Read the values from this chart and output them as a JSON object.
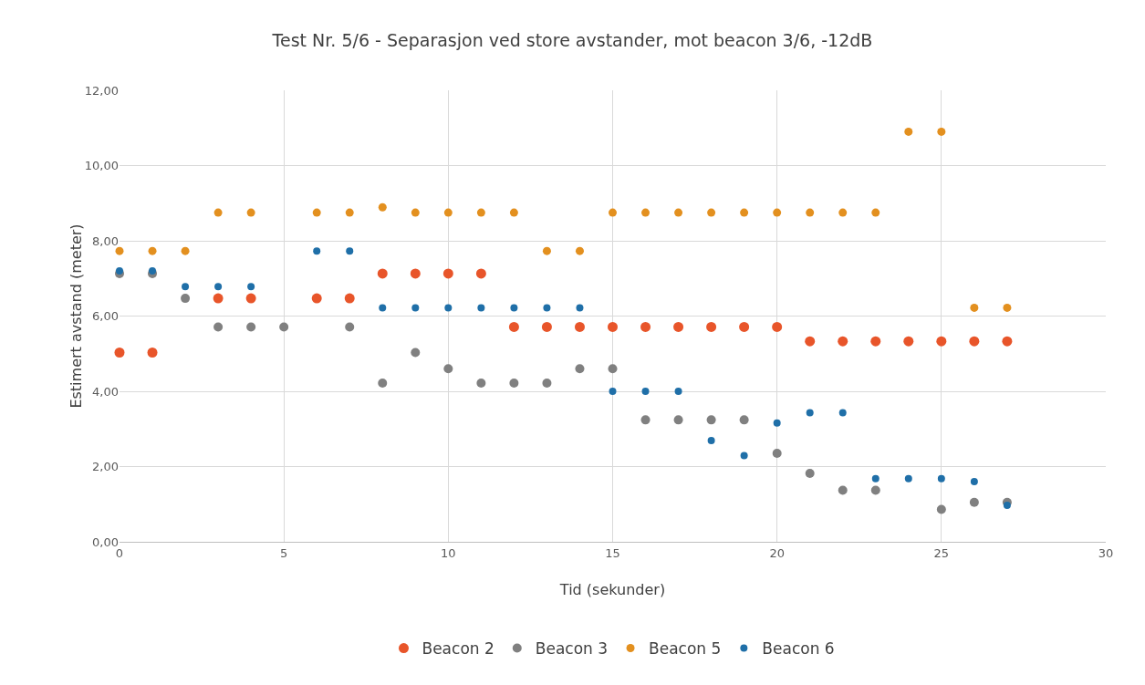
{
  "chart_data": {
    "type": "scatter",
    "title": "Test Nr. 5/6 - Separasjon ved store avstander, mot beacon 3/6, -12dB",
    "xlabel": "Tid (sekunder)",
    "ylabel": "Estimert avstand (meter)",
    "x": [
      0,
      1,
      2,
      3,
      4,
      5,
      6,
      7,
      8,
      9,
      10,
      11,
      12,
      13,
      14,
      15,
      16,
      17,
      18,
      19,
      20,
      21,
      22,
      23,
      24,
      25,
      26,
      27
    ],
    "series": [
      {
        "name": "Beacon 2",
        "color": "#e8552a",
        "values": [
          5.03,
          5.03,
          null,
          6.47,
          6.47,
          null,
          6.47,
          6.47,
          7.13,
          7.13,
          7.13,
          7.13,
          5.71,
          5.71,
          5.71,
          5.71,
          5.71,
          5.71,
          5.71,
          5.71,
          5.71,
          5.33,
          5.33,
          5.33,
          5.33,
          5.33,
          5.33,
          5.33
        ]
      },
      {
        "name": "Beacon 3",
        "color": "#808080",
        "values": [
          7.13,
          7.13,
          6.47,
          5.71,
          5.71,
          5.71,
          null,
          5.71,
          4.22,
          5.03,
          4.6,
          4.22,
          4.22,
          4.22,
          4.6,
          4.6,
          3.24,
          3.24,
          3.24,
          3.24,
          2.35,
          1.82,
          1.37,
          1.37,
          null,
          0.86,
          1.05,
          1.05
        ]
      },
      {
        "name": "Beacon 5",
        "color": "#e3901f",
        "values": [
          7.73,
          7.73,
          7.73,
          8.75,
          8.75,
          null,
          8.75,
          8.75,
          8.89,
          8.75,
          8.75,
          8.75,
          8.75,
          7.73,
          7.73,
          8.75,
          8.75,
          8.75,
          8.75,
          8.75,
          8.75,
          8.75,
          8.75,
          8.75,
          10.9,
          10.9,
          6.22,
          6.22
        ]
      },
      {
        "name": "Beacon 6",
        "color": "#1f6fa8",
        "values": [
          7.2,
          7.2,
          6.78,
          6.78,
          6.78,
          null,
          7.73,
          7.73,
          6.22,
          6.22,
          6.22,
          6.22,
          6.22,
          6.22,
          6.22,
          4.0,
          4.0,
          4.0,
          2.69,
          2.29,
          3.16,
          3.43,
          3.43,
          1.68,
          1.68,
          1.68,
          1.6,
          0.97
        ]
      }
    ],
    "xlim": [
      0,
      30
    ],
    "xticks": [
      0,
      5,
      10,
      15,
      20,
      25,
      30
    ],
    "ylim": [
      0,
      12
    ],
    "yticks": [
      {
        "value": 0,
        "label": "0,00"
      },
      {
        "value": 2,
        "label": "2,00"
      },
      {
        "value": 4,
        "label": "4,00"
      },
      {
        "value": 6,
        "label": "6,00"
      },
      {
        "value": 8,
        "label": "8,00"
      },
      {
        "value": 10,
        "label": "10,00"
      },
      {
        "value": 12,
        "label": "12,00"
      }
    ],
    "grid": true,
    "legend": "bottom",
    "marker": "circle"
  }
}
